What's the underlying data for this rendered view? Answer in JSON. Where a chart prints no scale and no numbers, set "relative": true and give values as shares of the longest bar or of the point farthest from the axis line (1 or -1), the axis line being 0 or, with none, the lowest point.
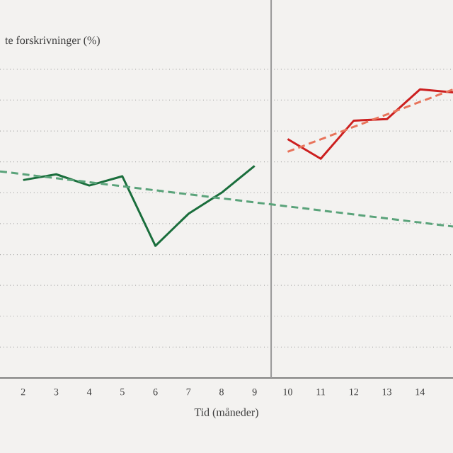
{
  "chart_data": {
    "type": "line",
    "ylabel": "te forskrivninger (%)",
    "xlabel": "Tid (måneder)",
    "relative": true,
    "xlim": [
      1.3,
      15.0
    ],
    "xticks": [
      2,
      3,
      4,
      5,
      6,
      7,
      8,
      9,
      10,
      11,
      12,
      13,
      14
    ],
    "tick_labels": "x",
    "grid": "y",
    "marker": "none",
    "series": [
      {
        "color": "#1a6e3c",
        "line_style": "solid",
        "x": [
          2,
          3,
          4,
          5,
          6,
          7,
          8,
          9
        ],
        "values": [
          0.686,
          0.706,
          0.667,
          0.699,
          0.458,
          0.569,
          0.642,
          0.735
        ]
      },
      {
        "color": "#cc1f1f",
        "line_style": "solid",
        "x": [
          10,
          11,
          12,
          13,
          14,
          15
        ],
        "values": [
          0.828,
          0.76,
          0.892,
          0.897,
          1.0,
          0.99
        ]
      },
      {
        "color": "#5aa37a",
        "line_style": "dashed",
        "x": [
          1.3,
          15.0
        ],
        "values": [
          0.716,
          0.525
        ]
      },
      {
        "color": "#e8735a",
        "line_style": "dashed",
        "x": [
          10,
          15
        ],
        "values": [
          0.784,
          1.0
        ]
      }
    ],
    "ref_lines": [
      {
        "axis": "x",
        "value": 9.5,
        "color": "#999999"
      }
    ]
  }
}
